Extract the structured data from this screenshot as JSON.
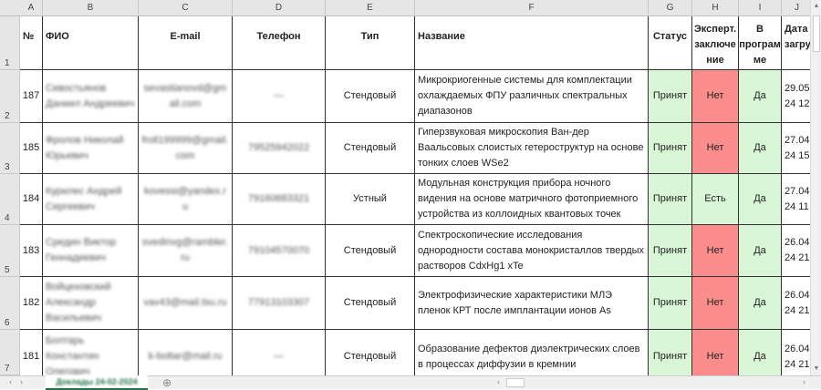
{
  "columns": [
    "A",
    "B",
    "C",
    "D",
    "E",
    "F",
    "G",
    "H",
    "I",
    "J"
  ],
  "row_numbers": [
    "1",
    "2",
    "3",
    "4",
    "5",
    "6",
    "7"
  ],
  "headers": {
    "num": "№",
    "fio": "ФИО",
    "email": "E-mail",
    "phone": "Телефон",
    "type": "Тип",
    "title": "Название",
    "status": "Статус",
    "expert": "Эксперт. заключе ние",
    "program": "В програм ме",
    "date": "Дата загру"
  },
  "rows": [
    {
      "num": "187",
      "fio": "Севостьянов Даниил Андреевич",
      "email": "sevastianovd@gmail.com",
      "phone": "—",
      "type": "Стендовый",
      "title": "Микрокриогенные системы для комплектации охлаждаемых ФПУ различных спектральных диапазонов",
      "status": "Принят",
      "expert": "Нет",
      "program": "Да",
      "date": "29.05 24 12"
    },
    {
      "num": "185",
      "fio": "Фролов Николай Юрьевич",
      "email": "froll199999@gmail.com",
      "phone": "79525942022",
      "type": "Стендовый",
      "title": "Гиперзвуковая микроскопия Ван-дер Ваальсовых слоистых гетероструктур на основе тонких слоев WSe2",
      "status": "Принят",
      "expert": "Нет",
      "program": "Да",
      "date": "27.04 24 15"
    },
    {
      "num": "184",
      "fio": "Курилес Андрей Сергеевич",
      "email": "kovessi@yandex.ru",
      "phone": "79160683321",
      "type": "Устный",
      "title": "Модульная конструкция прибора ночного видения на основе матричного фотоприемного устройства из коллоидных квантовых точек",
      "status": "Принят",
      "expert": "Есть",
      "program": "Да",
      "date": "27.04 24 11"
    },
    {
      "num": "183",
      "fio": "Средин Виктор Геннадиевич",
      "email": "svedinvg@rambler.ru",
      "phone": "79104570070",
      "type": "Стендовый",
      "title": "Спектроскопические исследования однородности состава монокристаллов твердых растворов CdxHg1 xTe",
      "status": "Принят",
      "expert": "Нет",
      "program": "Да",
      "date": "26.04 24 21"
    },
    {
      "num": "182",
      "fio": "Войцеховский Александр Васильевич",
      "email": "vav43@mail.tsu.ru",
      "phone": "77913103307",
      "type": "Стендовый",
      "title": "Электрофизические характеристики МЛЭ пленок КРТ после имплантации ионов As",
      "status": "Принят",
      "expert": "Нет",
      "program": "Да",
      "date": "26.04 24 21"
    },
    {
      "num": "181",
      "fio": "Болтарь Константин Олегович",
      "email": "k-boltar@mail.ru",
      "phone": "—",
      "type": "Стендовый",
      "title": "Образование дефектов диэлектрических слоев в процессах диффузии в кремнии",
      "status": "Принят",
      "expert": "Нет",
      "program": "Да",
      "date": "26.04 24 21"
    }
  ],
  "sheet_tab": "Доклады 24-02-2024",
  "add_sheet": "⊕",
  "colors": {
    "accepted": "#d9f7d6",
    "no": "#fb8d8d",
    "tab": "#217346"
  }
}
